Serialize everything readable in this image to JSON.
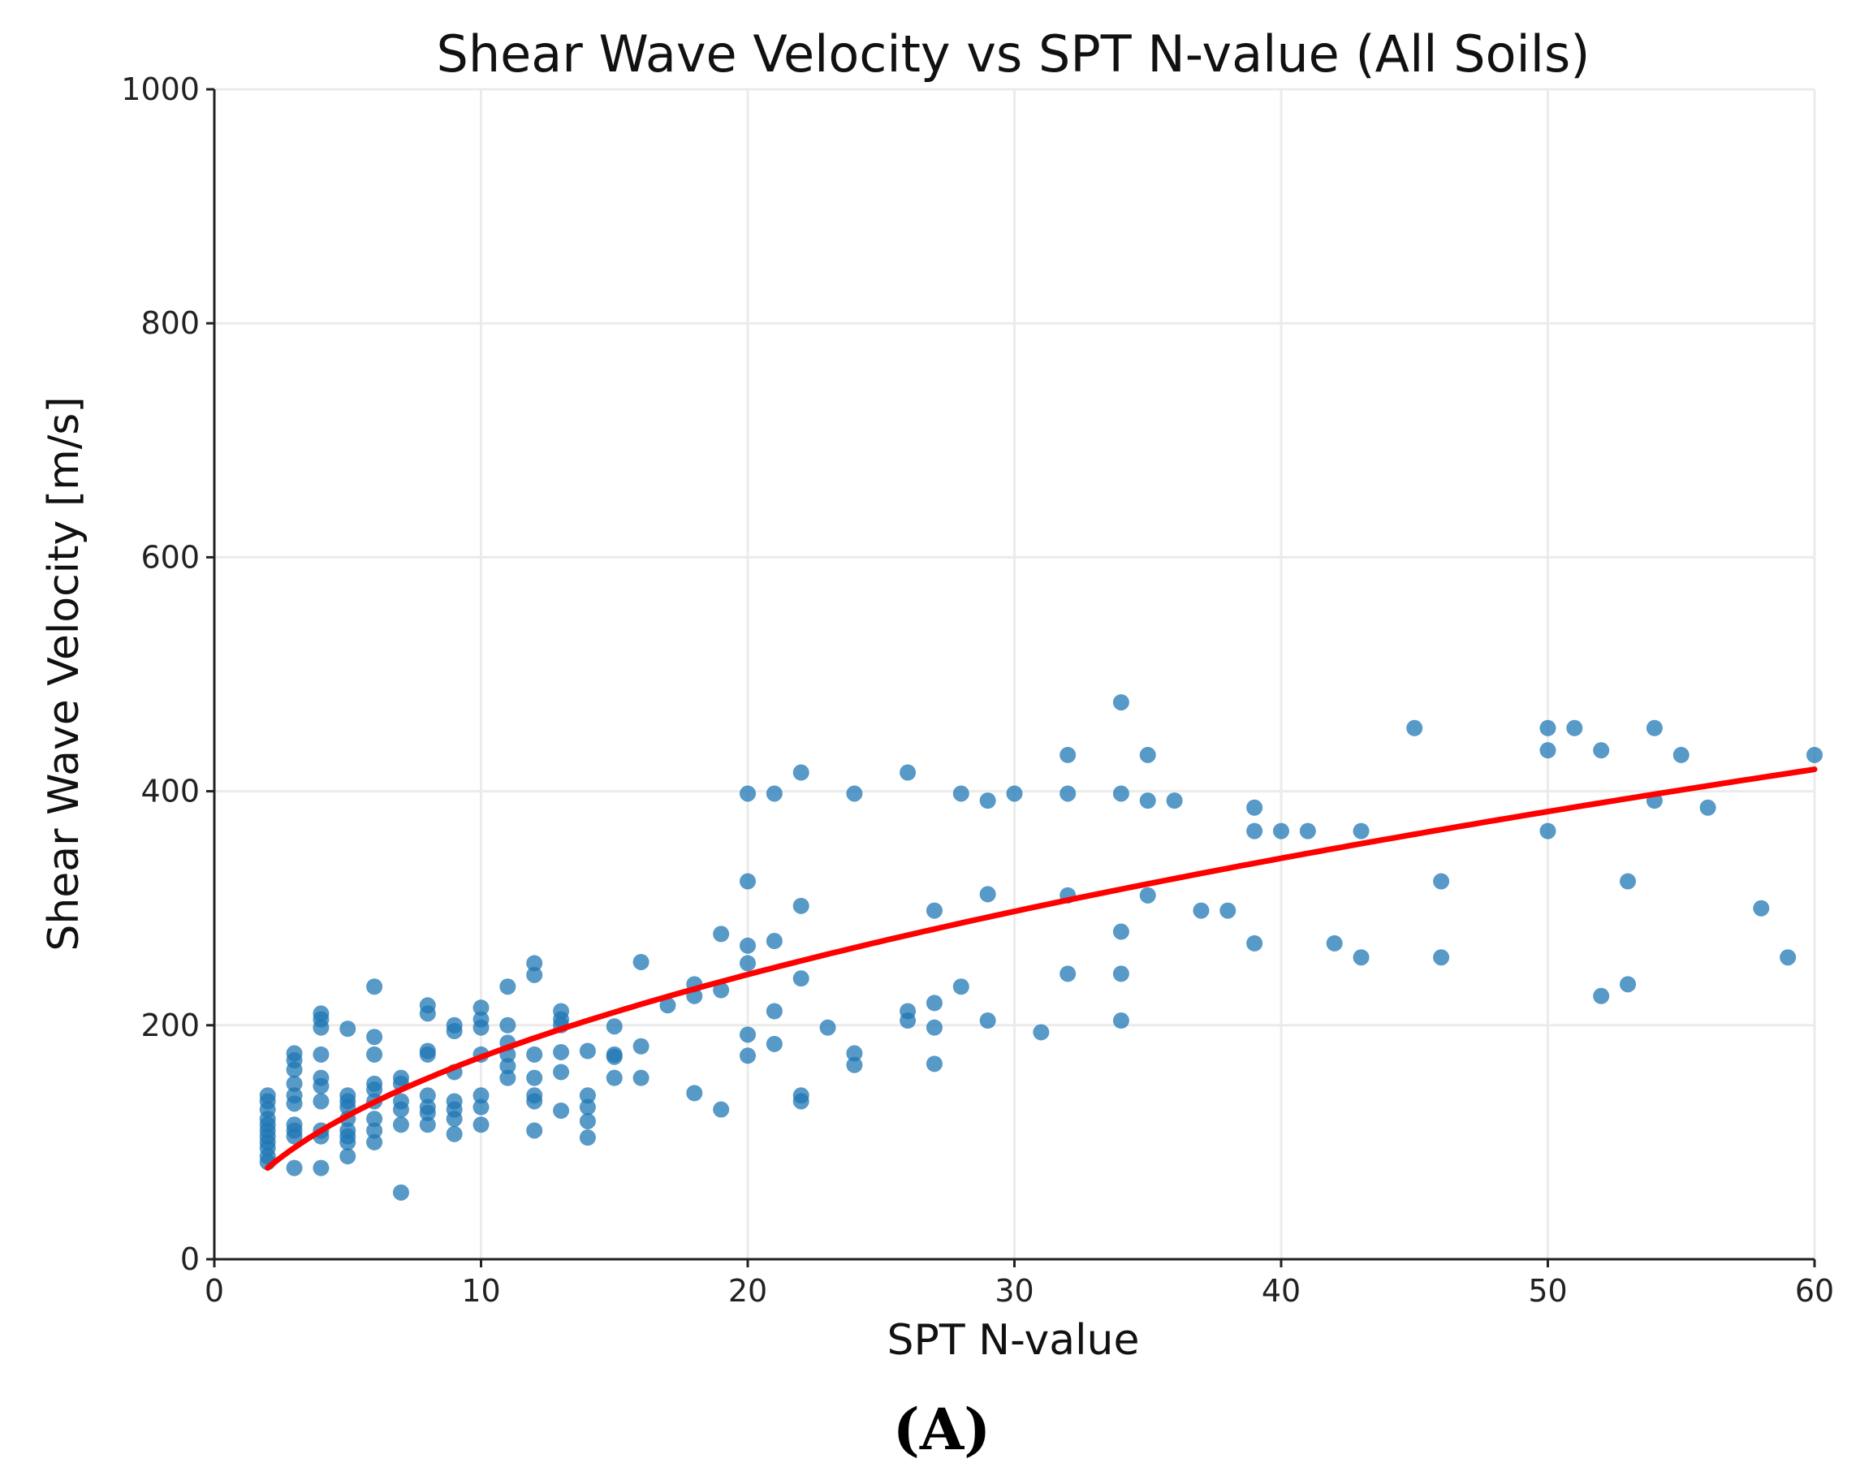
{
  "chart_data": {
    "type": "scatter",
    "title": "Shear Wave Velocity vs SPT N-value (All Soils)",
    "xlabel": "SPT N-value",
    "ylabel": "Shear Wave Velocity [m/s]",
    "panel_label": "(A)",
    "xlim": [
      0,
      60
    ],
    "ylim": [
      0,
      1000
    ],
    "xticks": [
      0,
      10,
      20,
      30,
      40,
      50,
      60
    ],
    "yticks": [
      0,
      200,
      400,
      600,
      800,
      1000
    ],
    "grid": true,
    "colors": {
      "points": "#1f77b4",
      "fit": "#ff0000"
    },
    "fit_curve": {
      "form": "power",
      "a": 55.4,
      "b": 0.494,
      "x_range": [
        2,
        60
      ]
    },
    "points": [
      [
        2,
        [
          140,
          135,
          128,
          120,
          115,
          110,
          105,
          100,
          95,
          88,
          83
        ]
      ],
      [
        3,
        [
          176,
          170,
          162,
          150,
          140,
          133,
          115,
          110,
          105,
          78
        ]
      ],
      [
        4,
        [
          210,
          205,
          198,
          175,
          155,
          148,
          135,
          110,
          105,
          78
        ]
      ],
      [
        5,
        [
          197,
          140,
          135,
          130,
          120,
          110,
          105,
          100,
          88
        ]
      ],
      [
        6,
        [
          233,
          190,
          175,
          150,
          145,
          135,
          120,
          110,
          100
        ]
      ],
      [
        7,
        [
          155,
          150,
          135,
          128,
          115,
          57
        ]
      ],
      [
        8,
        [
          217,
          210,
          178,
          175,
          140,
          130,
          125,
          115
        ]
      ],
      [
        9,
        [
          200,
          195,
          160,
          135,
          128,
          120,
          107
        ]
      ],
      [
        10,
        [
          215,
          205,
          198,
          175,
          140,
          130,
          115
        ]
      ],
      [
        11,
        [
          233,
          200,
          185,
          175,
          165,
          155
        ]
      ],
      [
        12,
        [
          253,
          243,
          175,
          155,
          140,
          135,
          110
        ]
      ],
      [
        13,
        [
          212,
          205,
          200,
          177,
          160,
          127
        ]
      ],
      [
        14,
        [
          178,
          140,
          130,
          118,
          104
        ]
      ],
      [
        15,
        [
          199,
          175,
          173,
          155
        ]
      ],
      [
        16,
        [
          254,
          182,
          155
        ]
      ],
      [
        17,
        [
          217
        ]
      ],
      [
        18,
        [
          235,
          225,
          142
        ]
      ],
      [
        19,
        [
          278,
          230,
          128
        ]
      ],
      [
        20,
        [
          398,
          323,
          268,
          253,
          192,
          174
        ]
      ],
      [
        21,
        [
          398,
          272,
          212,
          184
        ]
      ],
      [
        22,
        [
          416,
          302,
          240,
          140,
          135
        ]
      ],
      [
        23,
        [
          198
        ]
      ],
      [
        24,
        [
          398,
          176,
          166
        ]
      ],
      [
        26,
        [
          416,
          212,
          204
        ]
      ],
      [
        27,
        [
          298,
          219,
          198,
          167
        ]
      ],
      [
        28,
        [
          398,
          233
        ]
      ],
      [
        29,
        [
          392,
          312,
          204
        ]
      ],
      [
        30,
        [
          398
        ]
      ],
      [
        31,
        [
          194
        ]
      ],
      [
        32,
        [
          431,
          398,
          311,
          244
        ]
      ],
      [
        34,
        [
          476,
          398,
          280,
          244,
          204
        ]
      ],
      [
        35,
        [
          431,
          392,
          311
        ]
      ],
      [
        36,
        [
          392
        ]
      ],
      [
        37,
        [
          298
        ]
      ],
      [
        38,
        [
          298
        ]
      ],
      [
        39,
        [
          386,
          366,
          270
        ]
      ],
      [
        40,
        [
          366
        ]
      ],
      [
        41,
        [
          366
        ]
      ],
      [
        42,
        [
          270
        ]
      ],
      [
        43,
        [
          366,
          258
        ]
      ],
      [
        45,
        [
          454
        ]
      ],
      [
        46,
        [
          323,
          258
        ]
      ],
      [
        50,
        [
          454,
          435,
          366
        ]
      ],
      [
        51,
        [
          454
        ]
      ],
      [
        52,
        [
          435,
          225
        ]
      ],
      [
        53,
        [
          323,
          235
        ]
      ],
      [
        54,
        [
          454,
          392
        ]
      ],
      [
        55,
        [
          431
        ]
      ],
      [
        56,
        [
          386
        ]
      ],
      [
        58,
        [
          300
        ]
      ],
      [
        59,
        [
          258
        ]
      ],
      [
        60,
        [
          431
        ]
      ]
    ]
  }
}
